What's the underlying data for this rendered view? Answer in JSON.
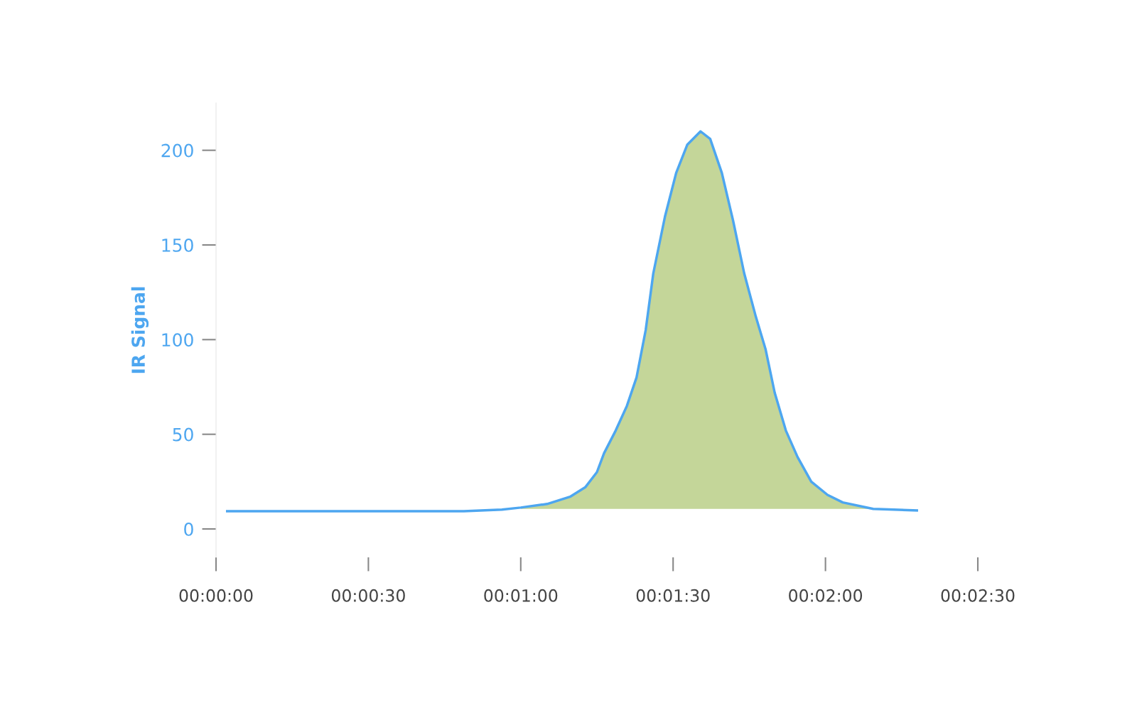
{
  "chart_data": {
    "type": "line",
    "ylabel": "IR Signal",
    "xlim": [
      0,
      150
    ],
    "ylim": [
      -15,
      225
    ],
    "xticks": [
      {
        "value": 0,
        "label": "00:00:00"
      },
      {
        "value": 30,
        "label": "00:00:30"
      },
      {
        "value": 60,
        "label": "00:01:00"
      },
      {
        "value": 90,
        "label": "00:01:30"
      },
      {
        "value": 120,
        "label": "00:02:00"
      },
      {
        "value": 150,
        "label": "00:02:30"
      }
    ],
    "yticks": [
      0,
      50,
      100,
      150,
      200
    ],
    "grid": false,
    "legend": false,
    "series": [
      {
        "type": "area",
        "color": "#c4d699",
        "x": [
          60,
          65.2,
          69.7,
          72.7,
          75,
          76.4,
          78.7,
          80.9,
          82.8,
          84.6,
          86.1,
          88.4,
          90.6,
          92.8,
          95.4,
          97.3,
          99.6,
          101.8,
          104,
          106.3,
          108.2,
          110,
          112.2,
          114.5,
          117.2,
          120.4,
          123.4,
          129.4
        ],
        "values": [
          11.3,
          13.2,
          17,
          22,
          30,
          40,
          52,
          65,
          80,
          105,
          135,
          165,
          188,
          203,
          210,
          206,
          188,
          163,
          135,
          112,
          95,
          72,
          52,
          38,
          25,
          18,
          14,
          10.6
        ]
      },
      {
        "color": "#4da6f0",
        "x": [
          2.2,
          48.8,
          56.3,
          60,
          65.2,
          69.7,
          72.7,
          75,
          76.4,
          78.7,
          80.9,
          82.8,
          84.6,
          86.1,
          88.4,
          90.6,
          92.8,
          95.4,
          97.3,
          99.6,
          101.8,
          104,
          106.3,
          108.2,
          110,
          112.2,
          114.5,
          117.2,
          120.4,
          123.4,
          129.4,
          138
        ],
        "values": [
          9.4,
          9.4,
          10.2,
          11.3,
          13.2,
          17,
          22,
          30,
          40,
          52,
          65,
          80,
          105,
          135,
          165,
          188,
          203,
          210,
          206,
          188,
          163,
          135,
          112,
          95,
          72,
          52,
          38,
          25,
          18,
          14,
          10.6,
          9.8
        ]
      }
    ]
  }
}
